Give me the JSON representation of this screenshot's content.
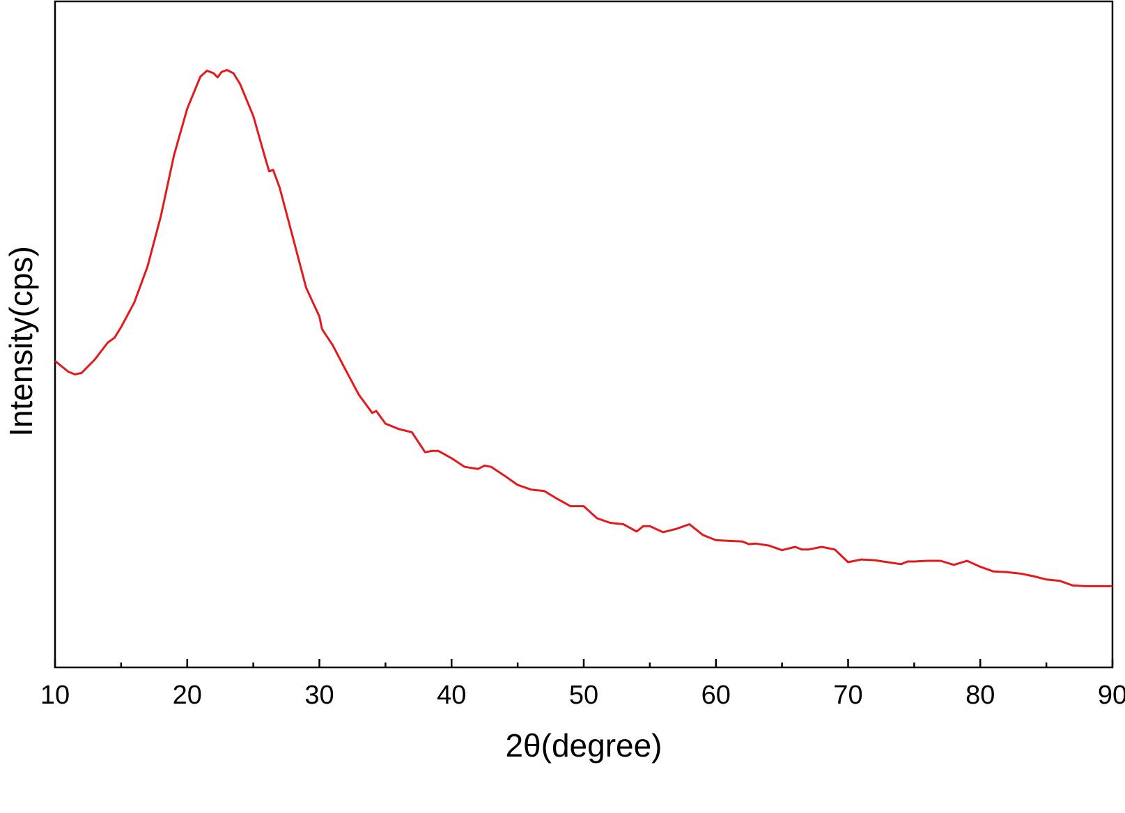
{
  "chart_data": {
    "type": "line",
    "x_label": "2θ(degree)",
    "y_label": "Intensity(cps)",
    "xlim": [
      10,
      90
    ],
    "xticks": [
      10,
      20,
      30,
      40,
      50,
      60,
      70,
      80,
      90
    ],
    "ylim": [
      0,
      100
    ],
    "x": [
      10,
      11,
      11.5,
      12,
      13,
      14,
      14.5,
      15,
      16,
      17,
      18,
      19,
      20,
      21,
      21.5,
      22,
      22.3,
      22.6,
      23,
      23.5,
      24,
      25,
      26,
      26.2,
      26.5,
      27,
      28,
      29,
      30,
      30.2,
      31,
      32,
      33,
      34,
      34.3,
      35,
      36,
      37,
      38,
      38.5,
      39,
      40,
      41,
      42,
      42.5,
      43,
      44,
      45,
      46,
      47,
      48,
      49,
      50,
      51,
      52,
      53,
      54,
      54.5,
      55,
      56,
      57,
      58,
      59,
      60,
      61,
      62,
      62.5,
      63,
      64,
      65,
      66,
      66.5,
      67,
      68,
      69,
      70,
      71,
      72,
      73,
      74,
      74.5,
      75,
      76,
      77,
      78,
      79,
      80,
      81,
      82,
      83,
      84,
      85,
      86,
      87,
      88,
      90
    ],
    "series": [
      {
        "color": "#e31a1c",
        "values": [
          46.0,
          44.4,
          44.0,
          44.2,
          46.2,
          48.8,
          49.5,
          51.1,
          54.8,
          60.2,
          67.7,
          76.9,
          83.9,
          88.7,
          89.6,
          89.2,
          88.6,
          89.4,
          89.7,
          89.2,
          87.6,
          82.8,
          75.8,
          74.5,
          74.7,
          72.0,
          64.5,
          57.0,
          52.7,
          50.8,
          48.4,
          44.6,
          40.9,
          38.2,
          38.5,
          36.6,
          35.8,
          35.3,
          32.3,
          32.5,
          32.5,
          31.4,
          30.1,
          29.8,
          30.3,
          30.1,
          28.8,
          27.4,
          26.7,
          26.5,
          25.3,
          24.2,
          24.2,
          22.4,
          21.7,
          21.5,
          20.4,
          21.2,
          21.2,
          20.3,
          20.8,
          21.5,
          19.9,
          19.1,
          19.0,
          18.9,
          18.5,
          18.6,
          18.3,
          17.6,
          18.1,
          17.7,
          17.7,
          18.1,
          17.7,
          15.8,
          16.2,
          16.1,
          15.8,
          15.5,
          15.9,
          15.9,
          16.0,
          16.0,
          15.4,
          16.0,
          15.1,
          14.4,
          14.3,
          14.1,
          13.7,
          13.2,
          13.0,
          12.3,
          12.2,
          12.2
        ]
      }
    ]
  }
}
